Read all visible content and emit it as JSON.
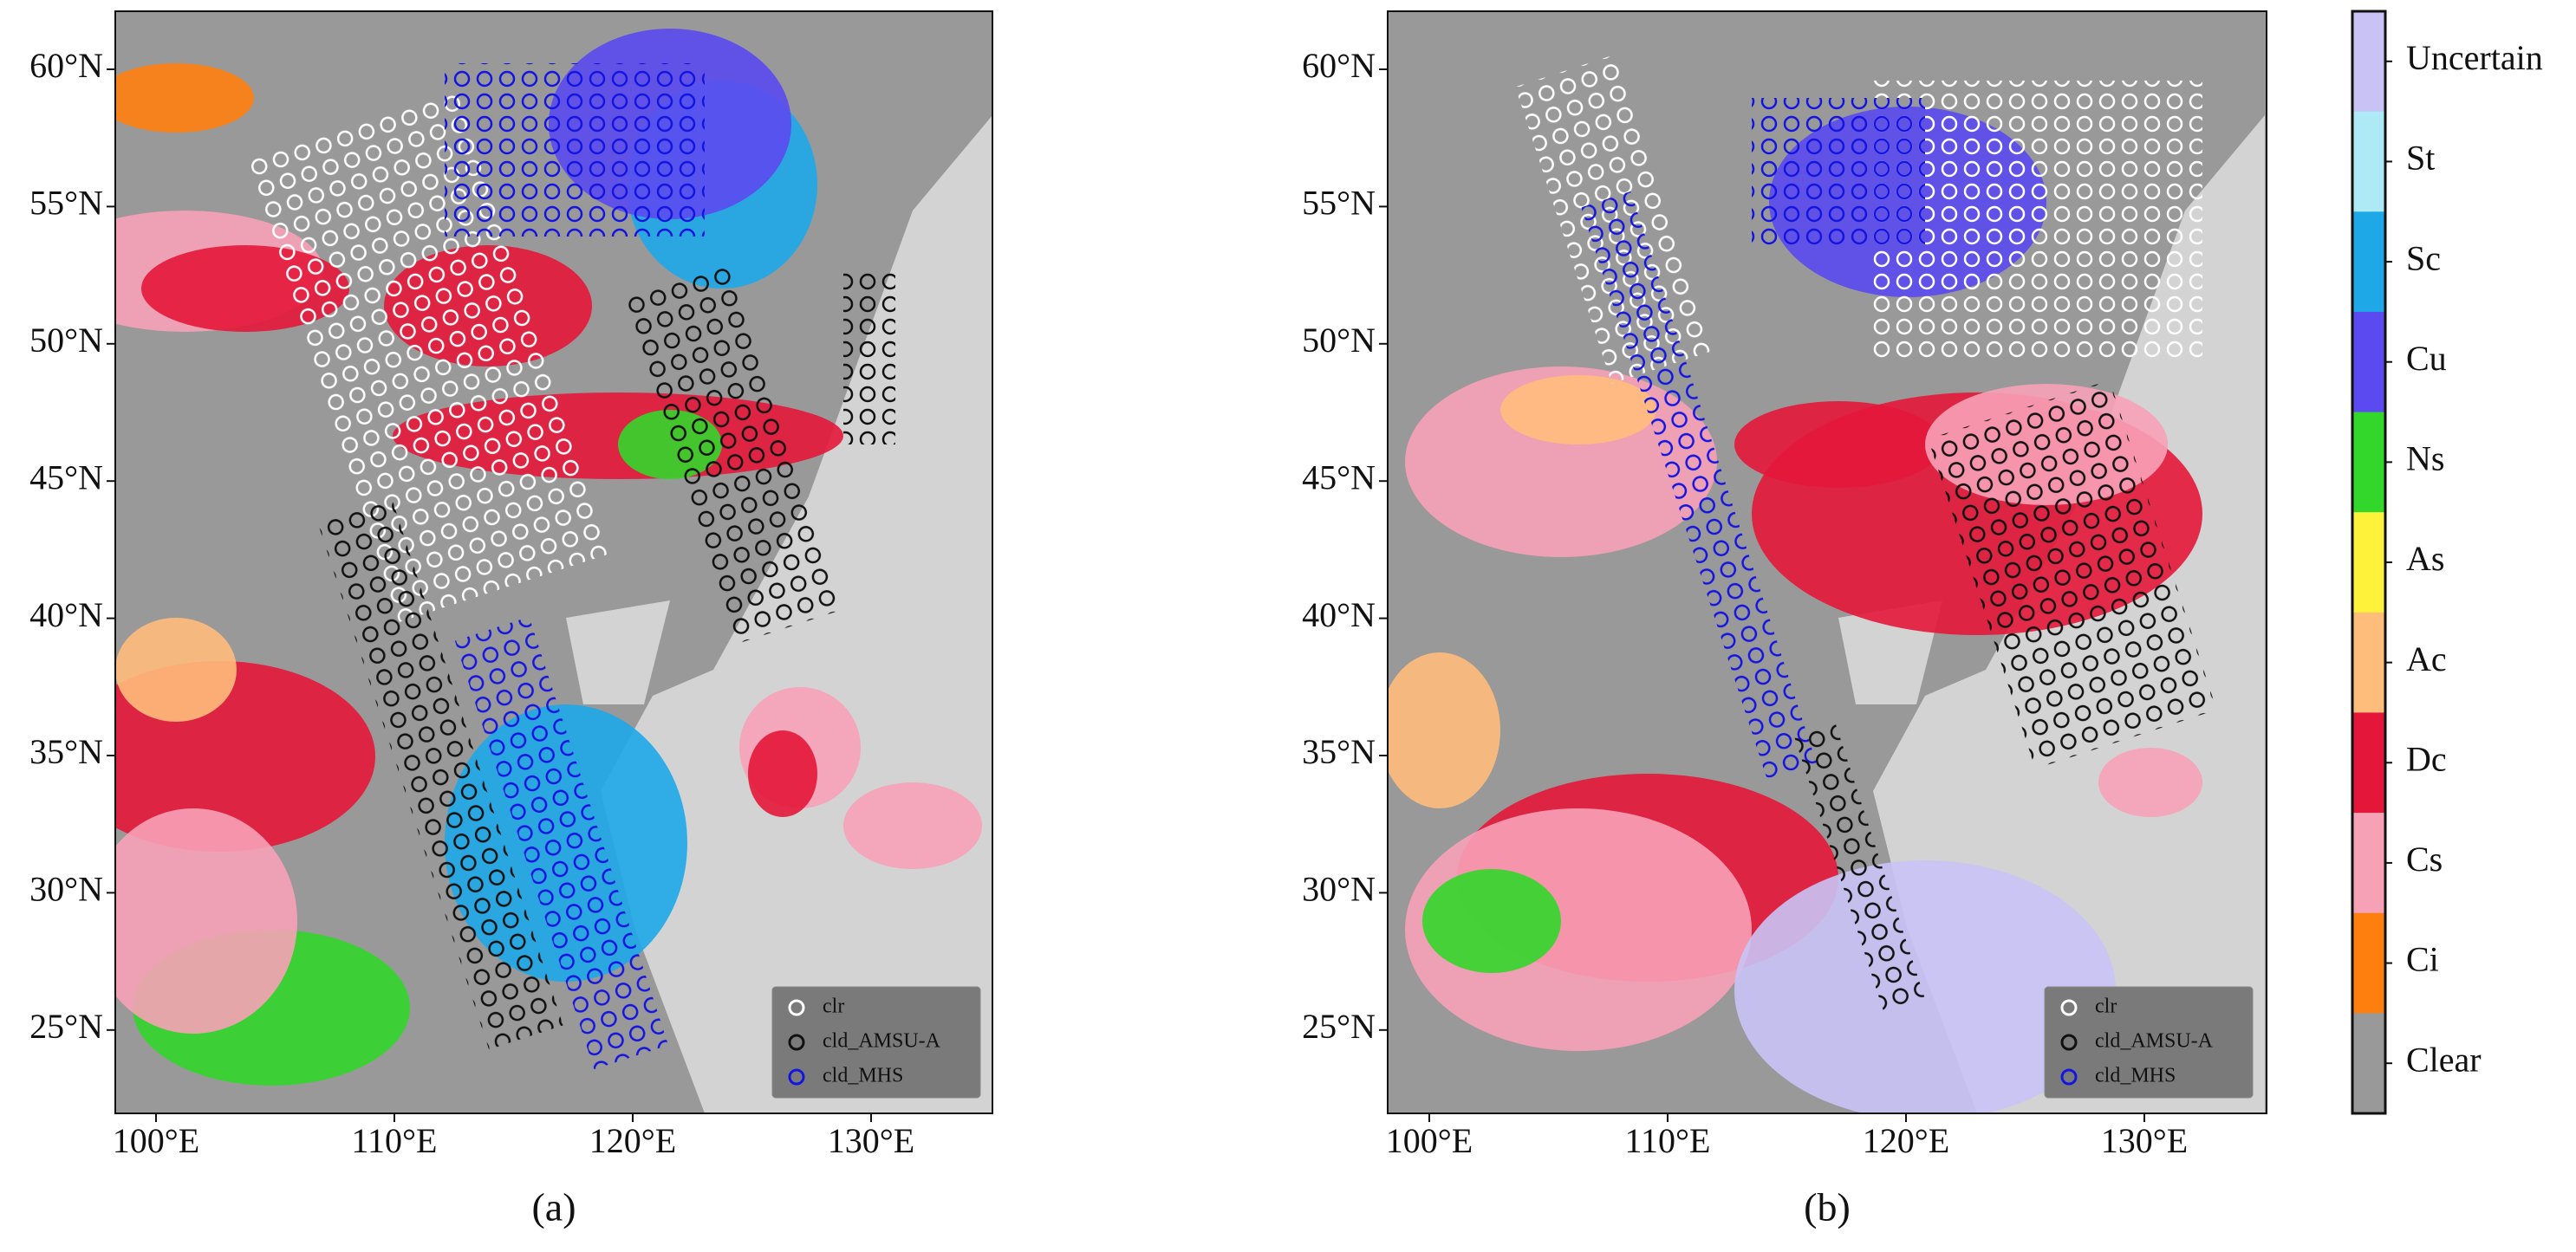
{
  "panels": [
    {
      "label": "(a)",
      "xticks": [
        "100°E",
        "110°E",
        "120°E",
        "130°E"
      ],
      "yticks": [
        "60°N",
        "55°N",
        "50°N",
        "45°N",
        "40°N",
        "35°N",
        "30°N",
        "25°N"
      ],
      "legend": [
        "clr",
        "cld_AMSU-A",
        "cld_MHS"
      ]
    },
    {
      "label": "(b)",
      "xticks": [
        "100°E",
        "110°E",
        "120°E",
        "130°E"
      ],
      "yticks": [
        "60°N",
        "55°N",
        "50°N",
        "45°N",
        "40°N",
        "35°N",
        "30°N",
        "25°N"
      ],
      "legend": [
        "clr",
        "cld_AMSU-A",
        "cld_MHS"
      ]
    }
  ],
  "colorbar": {
    "classes": [
      {
        "name": "Uncertain",
        "color": "#c9c3f5"
      },
      {
        "name": "St",
        "color": "#aee9f6"
      },
      {
        "name": "Sc",
        "color": "#1ea8e8"
      },
      {
        "name": "Cu",
        "color": "#5b4af0"
      },
      {
        "name": "Ns",
        "color": "#33d62b"
      },
      {
        "name": "As",
        "color": "#fff23a"
      },
      {
        "name": "Ac",
        "color": "#ffbd7c"
      },
      {
        "name": "Dc",
        "color": "#e4173a"
      },
      {
        "name": "Cs",
        "color": "#f7a1b7"
      },
      {
        "name": "Ci",
        "color": "#ff7f0e"
      },
      {
        "name": "Clear",
        "color": "#999999"
      }
    ]
  }
}
